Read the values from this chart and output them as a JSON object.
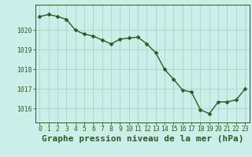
{
  "x": [
    0,
    1,
    2,
    3,
    4,
    5,
    6,
    7,
    8,
    9,
    10,
    11,
    12,
    13,
    14,
    15,
    16,
    17,
    18,
    19,
    20,
    21,
    22,
    23
  ],
  "y": [
    1020.7,
    1020.8,
    1020.7,
    1020.55,
    1020.0,
    1019.8,
    1019.7,
    1019.5,
    1019.3,
    1019.55,
    1019.6,
    1019.65,
    1019.3,
    1018.85,
    1018.0,
    1017.5,
    1016.95,
    1016.85,
    1015.95,
    1015.75,
    1016.35,
    1016.35,
    1016.45,
    1017.0
  ],
  "line_color": "#2d5a27",
  "marker_color": "#2d5a27",
  "bg_color": "#cceee8",
  "grid_color": "#a8d4cc",
  "title": "Graphe pression niveau de la mer (hPa)",
  "ylim_min": 1015.3,
  "ylim_max": 1021.3,
  "yticks": [
    1016,
    1017,
    1018,
    1019,
    1020
  ],
  "xticks": [
    0,
    1,
    2,
    3,
    4,
    5,
    6,
    7,
    8,
    9,
    10,
    11,
    12,
    13,
    14,
    15,
    16,
    17,
    18,
    19,
    20,
    21,
    22,
    23
  ],
  "tick_fontsize": 5.8,
  "title_fontsize": 8.0,
  "line_width": 1.0,
  "marker_size": 2.5,
  "marker": "D"
}
